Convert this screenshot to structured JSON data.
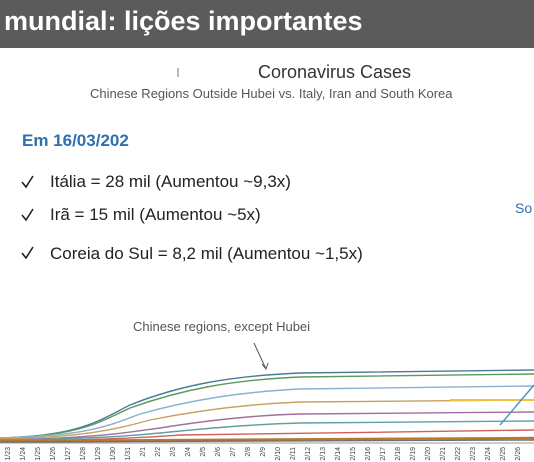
{
  "header": {
    "title": "mundial: lições importantes"
  },
  "chart": {
    "title": "Coronavirus Cases",
    "subtitle": "Chinese Regions Outside Hubei vs. Italy, Iran and South Korea",
    "annotation": "Chinese regions, except Hubei",
    "partial_label": "So",
    "x_labels": [
      "1/23",
      "1/24",
      "1/25",
      "1/26",
      "1/27",
      "1/28",
      "1/29",
      "1/30",
      "1/31",
      "2/1",
      "2/2",
      "2/3",
      "2/4",
      "2/5",
      "2/6",
      "2/7",
      "2/8",
      "2/9",
      "2/10",
      "2/11",
      "2/12",
      "2/13",
      "2/14",
      "2/15",
      "2/16",
      "2/17",
      "2/18",
      "2/19",
      "2/20",
      "2/21",
      "2/22",
      "2/23",
      "2/24",
      "2/25",
      "2/26"
    ]
  },
  "notes": {
    "heading": "Em 16/03/202",
    "items": [
      "Itália = 28 mil (Aumentou ~9,3x)",
      "Irã = 15 mil (Aumentou ~5x)",
      "Coreia do Sul = 8,2 mil (Aumentou ~1,5x)"
    ]
  }
}
